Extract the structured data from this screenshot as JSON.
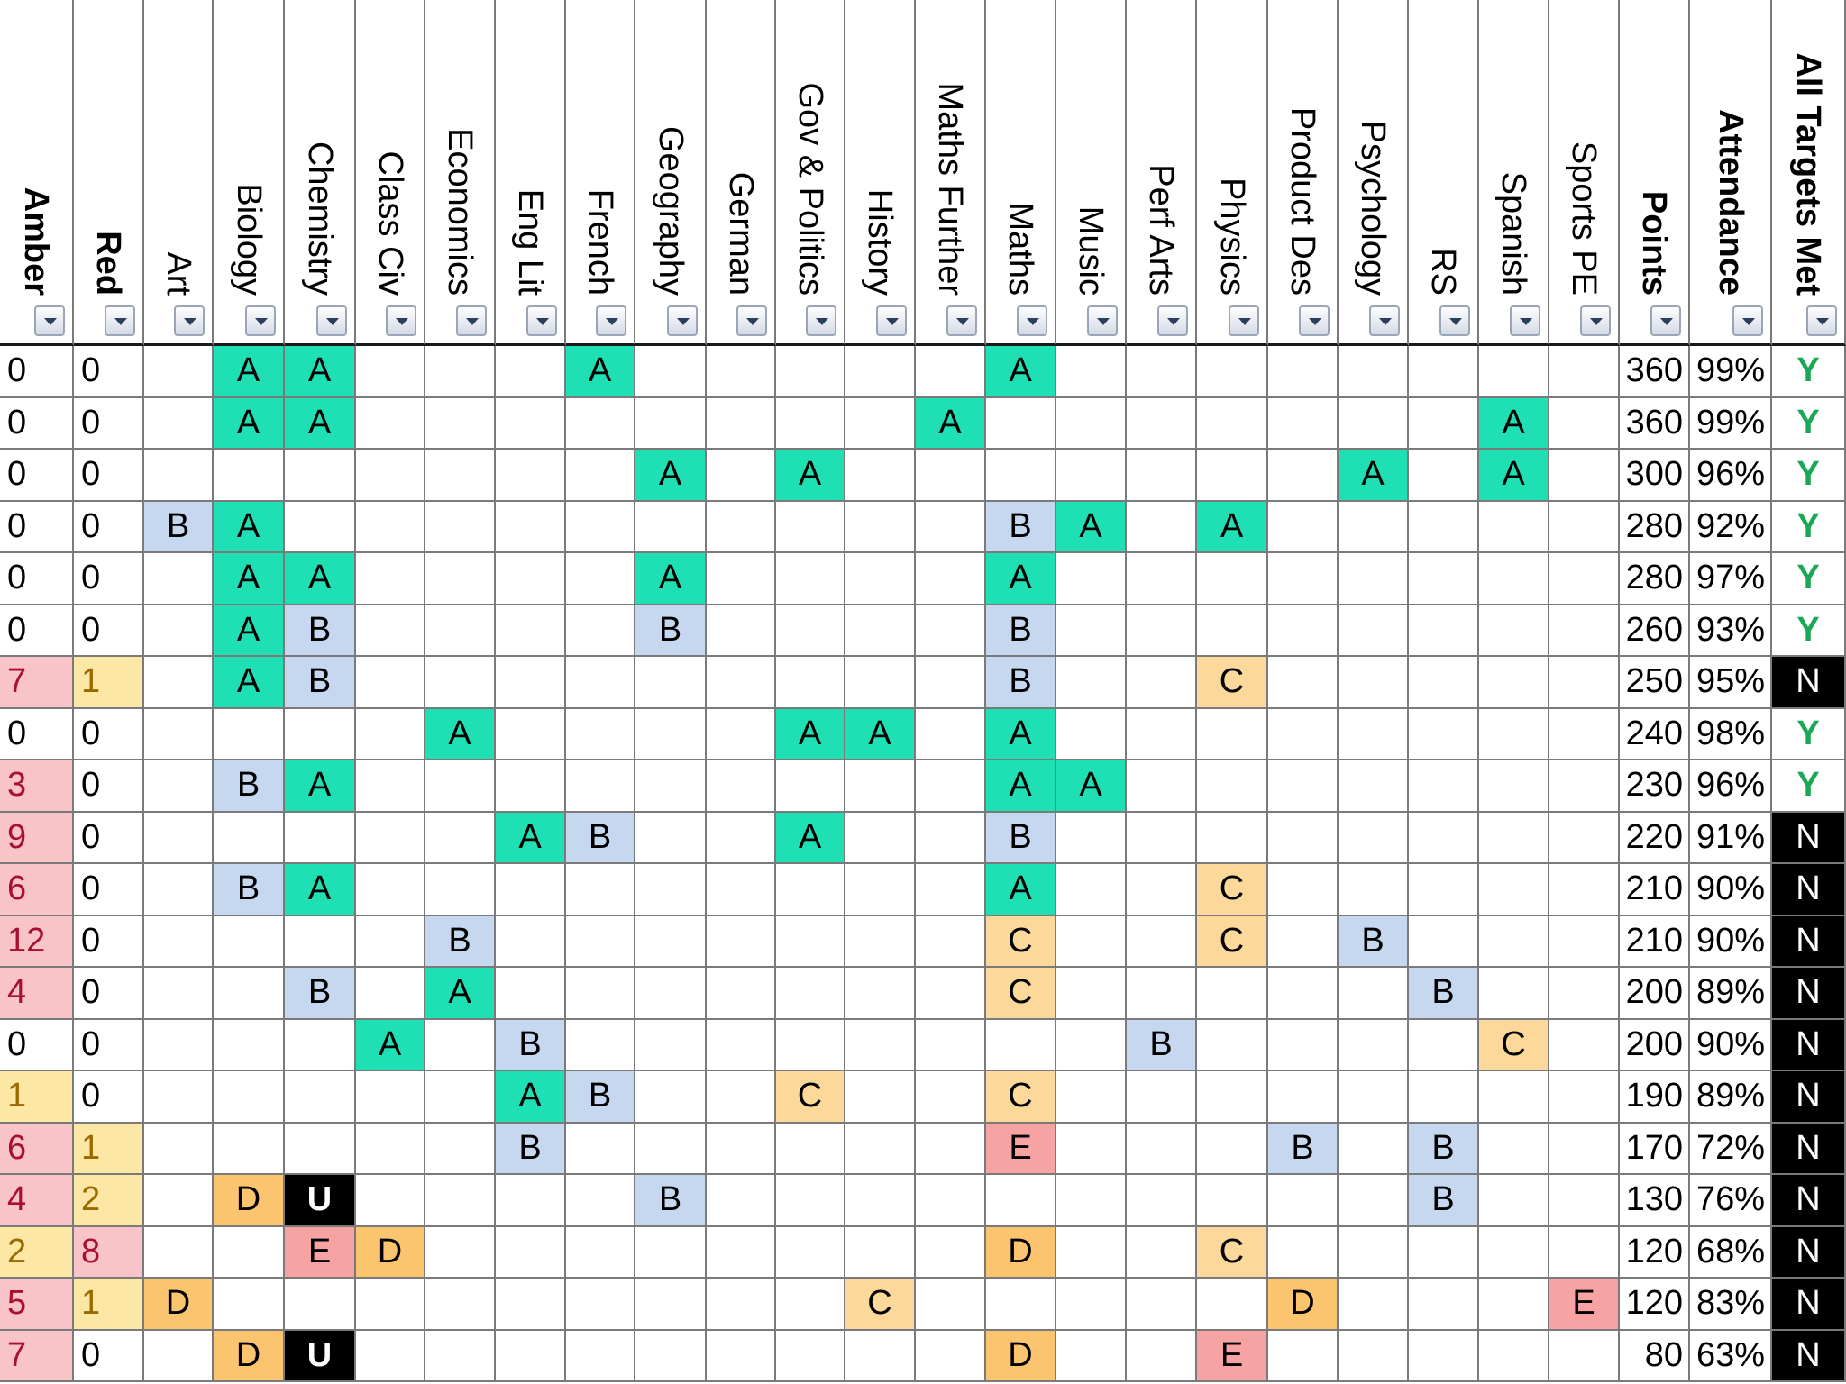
{
  "columns": [
    {
      "key": "amber",
      "label": "Amber",
      "bold": true,
      "align": "left"
    },
    {
      "key": "red",
      "label": "Red",
      "bold": true,
      "align": "left"
    },
    {
      "key": "art",
      "label": "Art",
      "bold": false,
      "align": "center"
    },
    {
      "key": "biology",
      "label": "Biology",
      "bold": false,
      "align": "center"
    },
    {
      "key": "chemistry",
      "label": "Chemistry",
      "bold": false,
      "align": "center"
    },
    {
      "key": "class_civ",
      "label": "Class Civ",
      "bold": false,
      "align": "center"
    },
    {
      "key": "economics",
      "label": "Economics",
      "bold": false,
      "align": "center"
    },
    {
      "key": "eng_lit",
      "label": "Eng Lit",
      "bold": false,
      "align": "center"
    },
    {
      "key": "french",
      "label": "French",
      "bold": false,
      "align": "center"
    },
    {
      "key": "geography",
      "label": "Geography",
      "bold": false,
      "align": "center"
    },
    {
      "key": "german",
      "label": "German",
      "bold": false,
      "align": "center"
    },
    {
      "key": "gov_politics",
      "label": "Gov & Politics",
      "bold": false,
      "align": "center"
    },
    {
      "key": "history",
      "label": "History",
      "bold": false,
      "align": "center"
    },
    {
      "key": "maths_further",
      "label": "Maths Further",
      "bold": false,
      "align": "center"
    },
    {
      "key": "maths",
      "label": "Maths",
      "bold": false,
      "align": "center"
    },
    {
      "key": "music",
      "label": "Music",
      "bold": false,
      "align": "center"
    },
    {
      "key": "perf_arts",
      "label": "Perf Arts",
      "bold": false,
      "align": "center"
    },
    {
      "key": "physics",
      "label": "Physics",
      "bold": false,
      "align": "center"
    },
    {
      "key": "product_des",
      "label": "Product Des",
      "bold": false,
      "align": "center"
    },
    {
      "key": "psychology",
      "label": "Psychology",
      "bold": false,
      "align": "center"
    },
    {
      "key": "rs",
      "label": "RS",
      "bold": false,
      "align": "center"
    },
    {
      "key": "spanish",
      "label": "Spanish",
      "bold": false,
      "align": "center"
    },
    {
      "key": "sports_pe",
      "label": "Sports PE",
      "bold": false,
      "align": "center"
    },
    {
      "key": "points",
      "label": "Points",
      "bold": true,
      "align": "right"
    },
    {
      "key": "attendance",
      "label": "Attendance",
      "bold": true,
      "align": "right"
    },
    {
      "key": "all_targets_met",
      "label": "All Targets Met",
      "bold": true,
      "align": "center"
    }
  ],
  "rows": [
    {
      "amber": "0",
      "red": "0",
      "biology": "A",
      "chemistry": "A",
      "french": "A",
      "maths": "A",
      "points": "360",
      "attendance": "99%",
      "all_targets_met": "Y"
    },
    {
      "amber": "0",
      "red": "0",
      "biology": "A",
      "chemistry": "A",
      "maths_further": "A",
      "spanish": "A",
      "points": "360",
      "attendance": "99%",
      "all_targets_met": "Y"
    },
    {
      "amber": "0",
      "red": "0",
      "geography": "A",
      "gov_politics": "A",
      "psychology": "A",
      "spanish": "A",
      "points": "300",
      "attendance": "96%",
      "all_targets_met": "Y"
    },
    {
      "amber": "0",
      "red": "0",
      "art": "B",
      "biology": "A",
      "maths": "B",
      "music": "A",
      "physics": "A",
      "points": "280",
      "attendance": "92%",
      "all_targets_met": "Y"
    },
    {
      "amber": "0",
      "red": "0",
      "biology": "A",
      "chemistry": "A",
      "geography": "A",
      "maths": "A",
      "points": "280",
      "attendance": "97%",
      "all_targets_met": "Y"
    },
    {
      "amber": "0",
      "red": "0",
      "biology": "A",
      "chemistry": "B",
      "geography": "B",
      "maths": "B",
      "points": "260",
      "attendance": "93%",
      "all_targets_met": "Y"
    },
    {
      "amber": "7",
      "red": "1",
      "biology": "A",
      "chemistry": "B",
      "maths": "B",
      "physics": "C",
      "points": "250",
      "attendance": "95%",
      "all_targets_met": "N"
    },
    {
      "amber": "0",
      "red": "0",
      "economics": "A",
      "gov_politics": "A",
      "history": "A",
      "maths": "A",
      "points": "240",
      "attendance": "98%",
      "all_targets_met": "Y"
    },
    {
      "amber": "3",
      "red": "0",
      "biology": "B",
      "chemistry": "A",
      "maths": "A",
      "music": "A",
      "points": "230",
      "attendance": "96%",
      "all_targets_met": "Y"
    },
    {
      "amber": "9",
      "red": "0",
      "eng_lit": "A",
      "french": "B",
      "gov_politics": "A",
      "maths": "B",
      "points": "220",
      "attendance": "91%",
      "all_targets_met": "N"
    },
    {
      "amber": "6",
      "red": "0",
      "biology": "B",
      "chemistry": "A",
      "maths": "A",
      "physics": "C",
      "points": "210",
      "attendance": "90%",
      "all_targets_met": "N"
    },
    {
      "amber": "12",
      "red": "0",
      "economics": "B",
      "maths": "C",
      "physics": "C",
      "psychology": "B",
      "points": "210",
      "attendance": "90%",
      "all_targets_met": "N"
    },
    {
      "amber": "4",
      "red": "0",
      "chemistry": "B",
      "economics": "A",
      "maths": "C",
      "rs": "B",
      "points": "200",
      "attendance": "89%",
      "all_targets_met": "N"
    },
    {
      "amber": "0",
      "red": "0",
      "class_civ": "A",
      "eng_lit": "B",
      "perf_arts": "B",
      "spanish": "C",
      "points": "200",
      "attendance": "90%",
      "all_targets_met": "N"
    },
    {
      "amber": "1",
      "red": "0",
      "eng_lit": "A",
      "french": "B",
      "gov_politics": "C",
      "maths": "C",
      "points": "190",
      "attendance": "89%",
      "all_targets_met": "N"
    },
    {
      "amber": "6",
      "red": "1",
      "eng_lit": "B",
      "maths": "E",
      "product_des": "B",
      "rs": "B",
      "points": "170",
      "attendance": "72%",
      "all_targets_met": "N"
    },
    {
      "amber": "4",
      "red": "2",
      "biology": "D",
      "chemistry": "U",
      "geography": "B",
      "rs": "B",
      "points": "130",
      "attendance": "76%",
      "all_targets_met": "N"
    },
    {
      "amber": "2",
      "red": "8",
      "chemistry": "E",
      "class_civ": "D",
      "maths": "D",
      "physics": "C",
      "points": "120",
      "attendance": "68%",
      "all_targets_met": "N"
    },
    {
      "amber": "5",
      "red": "1",
      "art": "D",
      "history": "C",
      "product_des": "D",
      "sports_pe": "E",
      "points": "120",
      "attendance": "83%",
      "all_targets_met": "N"
    },
    {
      "amber": "7",
      "red": "0",
      "biology": "D",
      "chemistry": "U",
      "maths": "D",
      "physics": "E",
      "points": "80",
      "attendance": "63%",
      "all_targets_met": "N"
    }
  ],
  "flag_highlights": {
    "amber": [
      "",
      "",
      "",
      "",
      "",
      "",
      "pink",
      "",
      "pink",
      "pink",
      "pink",
      "pink",
      "pink",
      "",
      "yellow",
      "pink",
      "pink",
      "yellow",
      "pink",
      "pink"
    ],
    "red": [
      "",
      "",
      "",
      "",
      "",
      "",
      "yellow",
      "",
      "",
      "",
      "",
      "",
      "",
      "",
      "",
      "yellow",
      "yellow",
      "pink",
      "yellow",
      ""
    ]
  },
  "grade_colors": {
    "A": "#1fe0b4",
    "B": "#c6d8ef",
    "C": "#fcd89a",
    "D": "#fbc56f",
    "E": "#f7a3a3",
    "U": "#000000"
  },
  "status_colors": {
    "met": "#1aa856",
    "not_met_bg": "#000000"
  },
  "filter_icon": "chevron-down-icon"
}
